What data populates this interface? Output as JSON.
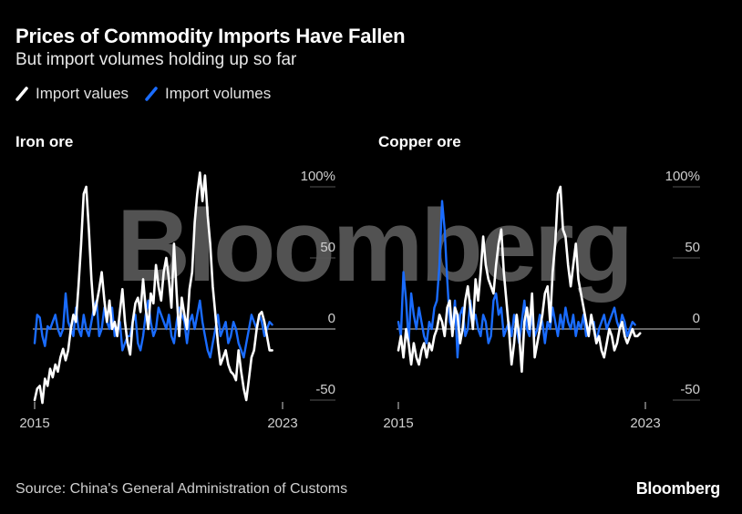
{
  "title": "Prices of Commodity Imports Have Fallen",
  "subtitle": "But import volumes holding up so far",
  "legend": [
    {
      "label": "Import values",
      "color": "#ffffff"
    },
    {
      "label": "Import volumes",
      "color": "#1a6cff"
    }
  ],
  "watermark": "Bloomberg",
  "source": "Source: China's General Administration of Customs",
  "brand": "Bloomberg",
  "colors": {
    "background": "#000000",
    "values": "#ffffff",
    "volumes": "#1a6cff",
    "zero_line": "#cccccc",
    "grid": "#555555"
  },
  "chart_data": [
    {
      "type": "line",
      "title": "Iron ore",
      "x_start_label": "2015",
      "x_end_label": "2023",
      "x_range": [
        2015.0,
        2023.0
      ],
      "ylim": [
        -50,
        100
      ],
      "yticks": [
        100,
        50,
        0,
        -50
      ],
      "ytick_labels": [
        "100%",
        "50",
        "0",
        "-50"
      ],
      "series": [
        {
          "name": "Import values",
          "x_start": 2015.0,
          "x_step": 0.0833,
          "values": [
            -50,
            -42,
            -40,
            -52,
            -35,
            -40,
            -28,
            -34,
            -25,
            -30,
            -20,
            -14,
            -22,
            -15,
            0,
            10,
            5,
            30,
            60,
            95,
            100,
            70,
            35,
            10,
            18,
            28,
            40,
            20,
            5,
            20,
            0,
            5,
            -5,
            12,
            28,
            5,
            -10,
            -18,
            5,
            18,
            22,
            12,
            35,
            15,
            0,
            25,
            18,
            45,
            30,
            20,
            40,
            50,
            35,
            15,
            60,
            25,
            -5,
            22,
            10,
            0,
            28,
            40,
            75,
            95,
            110,
            90,
            108,
            80,
            60,
            30,
            10,
            -10,
            -25,
            -20,
            -15,
            -25,
            -30,
            -32,
            -36,
            -15,
            -30,
            -42,
            -50,
            -35,
            -20,
            -15,
            0,
            10,
            12,
            5,
            -5,
            -15,
            -15
          ]
        },
        {
          "name": "Import volumes",
          "x_start": 2015.0,
          "x_step": 0.0833,
          "values": [
            -10,
            10,
            8,
            -5,
            -12,
            2,
            0,
            5,
            10,
            0,
            -5,
            0,
            25,
            5,
            0,
            -5,
            15,
            0,
            -5,
            10,
            0,
            -5,
            5,
            15,
            20,
            -5,
            0,
            15,
            5,
            0,
            15,
            -5,
            0,
            5,
            -15,
            -10,
            -5,
            -5,
            5,
            10,
            -10,
            -15,
            -5,
            10,
            20,
            5,
            -5,
            0,
            15,
            10,
            5,
            0,
            10,
            -5,
            -10,
            5,
            15,
            10,
            5,
            -10,
            5,
            10,
            0,
            10,
            20,
            5,
            -5,
            -15,
            -20,
            -10,
            0,
            10,
            -5,
            0,
            5,
            -10,
            -5,
            5,
            0,
            -10,
            -15,
            -20,
            -10,
            0,
            10,
            5,
            0,
            10,
            5,
            -5,
            0,
            5,
            3
          ]
        }
      ]
    },
    {
      "type": "line",
      "title": "Copper ore",
      "x_start_label": "2015",
      "x_end_label": "2023",
      "x_range": [
        2015.0,
        2023.0
      ],
      "ylim": [
        -50,
        100
      ],
      "yticks": [
        100,
        50,
        0,
        -50
      ],
      "ytick_labels": [
        "100%",
        "50",
        "0",
        "-50"
      ],
      "series": [
        {
          "name": "Import values",
          "x_start": 2015.0,
          "x_step": 0.0833,
          "values": [
            -15,
            -5,
            -20,
            0,
            -10,
            -25,
            -10,
            -20,
            -25,
            -15,
            -10,
            -20,
            -10,
            -15,
            -5,
            0,
            10,
            5,
            -5,
            15,
            20,
            -5,
            15,
            10,
            -10,
            0,
            20,
            30,
            15,
            0,
            35,
            20,
            40,
            65,
            45,
            35,
            30,
            25,
            45,
            60,
            70,
            40,
            20,
            0,
            -25,
            -10,
            10,
            -5,
            -30,
            5,
            15,
            0,
            25,
            -20,
            -10,
            0,
            10,
            25,
            30,
            5,
            40,
            60,
            95,
            100,
            70,
            65,
            45,
            30,
            45,
            60,
            35,
            25,
            15,
            5,
            -5,
            10,
            0,
            -10,
            -5,
            -15,
            -20,
            -10,
            0,
            -5,
            -15,
            -10,
            0,
            5,
            -5,
            -10,
            -5,
            0,
            -5,
            -5,
            -3
          ]
        },
        {
          "name": "Import volumes",
          "x_start": 2015.0,
          "x_step": 0.0833,
          "values": [
            5,
            -5,
            40,
            20,
            -10,
            25,
            10,
            0,
            15,
            5,
            -5,
            -10,
            5,
            0,
            15,
            20,
            45,
            90,
            70,
            35,
            5,
            0,
            20,
            -20,
            10,
            15,
            -5,
            0,
            20,
            5,
            10,
            0,
            -5,
            10,
            5,
            -10,
            -5,
            20,
            25,
            10,
            15,
            -5,
            0,
            5,
            -5,
            10,
            0,
            -10,
            5,
            20,
            0,
            -5,
            10,
            -5,
            0,
            10,
            5,
            -10,
            5,
            0,
            15,
            5,
            -5,
            10,
            0,
            15,
            5,
            0,
            10,
            -5,
            5,
            0,
            10,
            -5,
            0,
            5,
            5,
            -10,
            0,
            5,
            10,
            0,
            5,
            10,
            15,
            5,
            0,
            10,
            5,
            -5,
            0,
            5,
            3
          ]
        }
      ]
    }
  ]
}
